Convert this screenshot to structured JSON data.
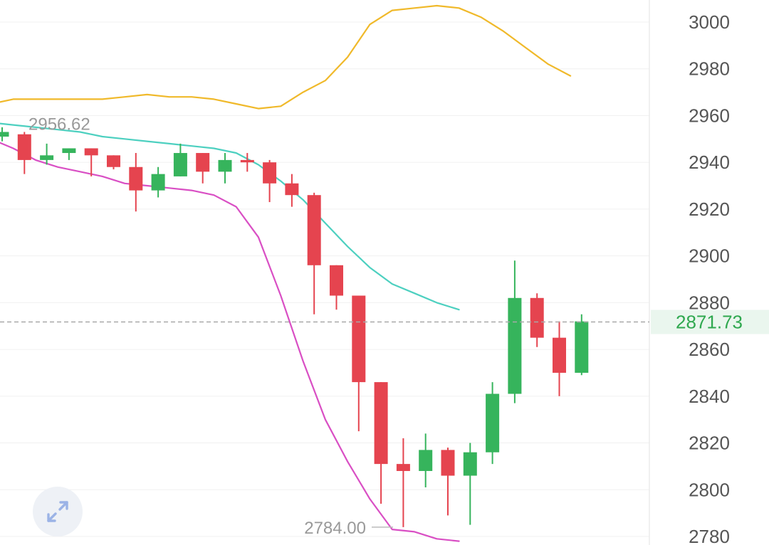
{
  "colors": {
    "up": "#36b45c",
    "down": "#e5444f",
    "ma_upper": "#f0b92a",
    "ma_middle": "#4dd0c0",
    "ma_lower": "#d94fc4",
    "grid": "#f0f0f0",
    "axis_text": "#555555",
    "last_price": "#2fa84f",
    "last_price_bg": "#eaf6ee",
    "annotation": "#999999"
  },
  "chart_data": {
    "type": "candlestick",
    "y_axis": {
      "ticks": [
        3000,
        2980,
        2960,
        2940,
        2920,
        2900,
        2880,
        2860,
        2840,
        2820,
        2800,
        2780
      ],
      "ylim": [
        2775,
        3009
      ],
      "position": "right"
    },
    "grid": true,
    "last_price": {
      "value": 2871.73,
      "label": "2871.73"
    },
    "annotations": {
      "high": {
        "value": 2956.62,
        "label": "2956.62"
      },
      "low": {
        "value": 2784.0,
        "label": "2784.00"
      }
    },
    "candles": [
      {
        "o": 2951,
        "h": 2955,
        "l": 2949,
        "c": 2953
      },
      {
        "o": 2952,
        "h": 2953,
        "l": 2935,
        "c": 2941
      },
      {
        "o": 2941,
        "h": 2948,
        "l": 2939,
        "c": 2943
      },
      {
        "o": 2944,
        "h": 2946,
        "l": 2941,
        "c": 2946
      },
      {
        "o": 2946,
        "h": 2946,
        "l": 2934,
        "c": 2943
      },
      {
        "o": 2943,
        "h": 2943,
        "l": 2937,
        "c": 2938
      },
      {
        "o": 2938,
        "h": 2944,
        "l": 2919,
        "c": 2928
      },
      {
        "o": 2928,
        "h": 2938,
        "l": 2925,
        "c": 2935
      },
      {
        "o": 2934,
        "h": 2948,
        "l": 2934,
        "c": 2944
      },
      {
        "o": 2944,
        "h": 2944,
        "l": 2931,
        "c": 2936
      },
      {
        "o": 2936,
        "h": 2944,
        "l": 2931,
        "c": 2941
      },
      {
        "o": 2941,
        "h": 2944,
        "l": 2936,
        "c": 2940
      },
      {
        "o": 2940,
        "h": 2941,
        "l": 2923,
        "c": 2931
      },
      {
        "o": 2931,
        "h": 2935,
        "l": 2921,
        "c": 2926
      },
      {
        "o": 2926,
        "h": 2927,
        "l": 2875,
        "c": 2896
      },
      {
        "o": 2896,
        "h": 2896,
        "l": 2877,
        "c": 2883
      },
      {
        "o": 2883,
        "h": 2883,
        "l": 2825,
        "c": 2846
      },
      {
        "o": 2846,
        "h": 2846,
        "l": 2794,
        "c": 2811
      },
      {
        "o": 2811,
        "h": 2822,
        "l": 2784,
        "c": 2808
      },
      {
        "o": 2808,
        "h": 2824,
        "l": 2801,
        "c": 2817
      },
      {
        "o": 2817,
        "h": 2818,
        "l": 2789,
        "c": 2806
      },
      {
        "o": 2806,
        "h": 2820,
        "l": 2785,
        "c": 2816
      },
      {
        "o": 2816,
        "h": 2846,
        "l": 2811,
        "c": 2841
      },
      {
        "o": 2841,
        "h": 2898,
        "l": 2837,
        "c": 2882
      },
      {
        "o": 2882,
        "h": 2884,
        "l": 2861,
        "c": 2865
      },
      {
        "o": 2865,
        "h": 2872,
        "l": 2840,
        "c": 2850
      },
      {
        "o": 2850,
        "h": 2875,
        "l": 2849,
        "c": 2872
      }
    ],
    "lines": [
      {
        "id": "upper",
        "color_key": "ma_upper",
        "points": [
          [
            -0.5,
            2965
          ],
          [
            0.5,
            2967
          ],
          [
            1.5,
            2967
          ],
          [
            2.5,
            2967
          ],
          [
            3.5,
            2967
          ],
          [
            4.5,
            2967
          ],
          [
            5.5,
            2968
          ],
          [
            6.5,
            2969
          ],
          [
            7.5,
            2968
          ],
          [
            8.5,
            2968
          ],
          [
            9.5,
            2967
          ],
          [
            10.5,
            2965
          ],
          [
            11.5,
            2963
          ],
          [
            12.5,
            2964
          ],
          [
            13.5,
            2970
          ],
          [
            14.5,
            2975
          ],
          [
            15.5,
            2985
          ],
          [
            16.5,
            2999
          ],
          [
            17.5,
            3005
          ],
          [
            18.5,
            3006
          ],
          [
            19.5,
            3007
          ],
          [
            20.5,
            3006
          ],
          [
            21.5,
            3002
          ],
          [
            22.5,
            2996
          ],
          [
            23.5,
            2989
          ],
          [
            24.5,
            2982
          ],
          [
            25.5,
            2977
          ]
        ]
      },
      {
        "id": "middle",
        "color_key": "ma_middle",
        "points": [
          [
            -0.5,
            2957
          ],
          [
            0.5,
            2956
          ],
          [
            1.5,
            2955
          ],
          [
            2.5,
            2954
          ],
          [
            3.5,
            2953
          ],
          [
            4.5,
            2951
          ],
          [
            5.5,
            2950
          ],
          [
            6.5,
            2949
          ],
          [
            7.5,
            2948
          ],
          [
            8.5,
            2947
          ],
          [
            9.5,
            2946
          ],
          [
            10.5,
            2944
          ],
          [
            11.5,
            2939
          ],
          [
            12.5,
            2932
          ],
          [
            13.5,
            2924
          ],
          [
            14.5,
            2914
          ],
          [
            15.5,
            2904
          ],
          [
            16.5,
            2895
          ],
          [
            17.5,
            2888
          ],
          [
            18.5,
            2884
          ],
          [
            19.5,
            2880
          ],
          [
            20.5,
            2877
          ]
        ]
      },
      {
        "id": "lower",
        "color_key": "ma_lower",
        "points": [
          [
            -0.5,
            2950
          ],
          [
            0.5,
            2946
          ],
          [
            1.5,
            2941
          ],
          [
            2.5,
            2938
          ],
          [
            3.5,
            2936
          ],
          [
            4.5,
            2934
          ],
          [
            5.5,
            2931
          ],
          [
            6.5,
            2930
          ],
          [
            7.5,
            2929
          ],
          [
            8.5,
            2928
          ],
          [
            9.5,
            2926
          ],
          [
            10.5,
            2921
          ],
          [
            11.5,
            2908
          ],
          [
            12.5,
            2883
          ],
          [
            13.5,
            2855
          ],
          [
            14.5,
            2830
          ],
          [
            15.5,
            2812
          ],
          [
            16.5,
            2796
          ],
          [
            17.5,
            2783
          ],
          [
            18.5,
            2782
          ],
          [
            19.5,
            2779
          ],
          [
            20.5,
            2778
          ]
        ]
      }
    ]
  },
  "controls": {
    "expand_icon": "expand-arrows-icon"
  }
}
